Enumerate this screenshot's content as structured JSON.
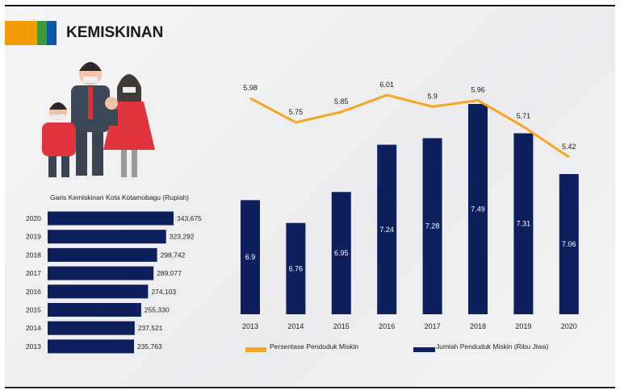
{
  "header": {
    "title": "KEMISKINAN",
    "logo_colors": [
      "#f59c00",
      "#3f9a3a",
      "#0d5aa7"
    ]
  },
  "colors": {
    "bar": "#0d1f5c",
    "line": "#f5a623",
    "text": "#222222",
    "bar_label": "#ffffff"
  },
  "chart_data": [
    {
      "type": "bar",
      "orientation": "horizontal",
      "title": "Garis Kemiskinan Kota Kotamobagu (Rupiah)",
      "categories": [
        "2020",
        "2019",
        "2018",
        "2017",
        "2016",
        "2015",
        "2014",
        "2013"
      ],
      "values": [
        343675,
        323292,
        298742,
        289077,
        274103,
        255330,
        237521,
        235763
      ],
      "value_labels": [
        "343,675",
        "323,292",
        "298,742",
        "289,077",
        "274,103",
        "255,330",
        "237,521",
        "235,763"
      ],
      "xlim": [
        0,
        343675
      ]
    },
    {
      "type": "bar+line",
      "categories": [
        "2013",
        "2014",
        "2015",
        "2016",
        "2017",
        "2018",
        "2019",
        "2020"
      ],
      "series": [
        {
          "name": "Jumlah Penduduk Miskin (Ribu Jiwa)",
          "type": "bar",
          "values": [
            6.9,
            6.76,
            6.95,
            7.24,
            7.28,
            7.49,
            7.31,
            7.06
          ],
          "labels": [
            "6.9",
            "6.76",
            "6.95",
            "7.24",
            "7.28",
            "7.49",
            "7.31",
            "7.06"
          ]
        },
        {
          "name": "Persentase Penduduk Miskin",
          "type": "line",
          "values": [
            5.98,
            5.75,
            5.85,
            6.01,
            5.9,
            5.96,
            5.71,
            5.42
          ],
          "labels": [
            "5.98",
            "5.75",
            "5.85",
            "6.01",
            "5.9",
            "5.96",
            "5.71",
            "5.42"
          ]
        }
      ],
      "bar_ylim": [
        6.2,
        7.49
      ],
      "line_ylim": [
        5.42,
        6.01
      ],
      "legend_position": "bottom"
    }
  ]
}
